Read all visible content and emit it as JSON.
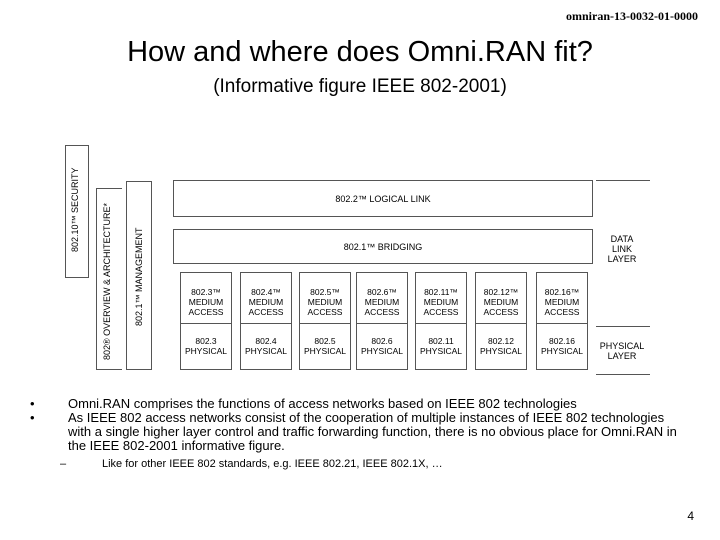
{
  "header": {
    "doc_id": "omniran-13-0032-01-0000"
  },
  "slide": {
    "title": "How and where does Omni.RAN fit?",
    "subtitle": "(Informative figure IEEE 802-2001)",
    "page_number": "4"
  },
  "figure": {
    "security_label": "802.10™ SECURITY",
    "overview_label": "802® OVERVIEW & ARCHITECTURE*",
    "management_label": "802.1™ MANAGEMENT",
    "logical_link_label": "802.2™ LOGICAL LINK",
    "bridging_label": "802.1™ BRIDGING",
    "data_link_layer": "DATA LINK LAYER",
    "physical_layer": "PHYSICAL LAYER",
    "columns": [
      {
        "mac": "802.3™ MEDIUM ACCESS",
        "phy": "802.3 PHYSICAL"
      },
      {
        "mac": "802.4™ MEDIUM ACCESS",
        "phy": "802.4 PHYSICAL"
      },
      {
        "mac": "802.5™ MEDIUM ACCESS",
        "phy": "802.5 PHYSICAL"
      },
      {
        "mac": "802.6™ MEDIUM ACCESS",
        "phy": "802.6 PHYSICAL"
      },
      {
        "mac": "802.11™ MEDIUM ACCESS",
        "phy": "802.11 PHYSICAL"
      },
      {
        "mac": "802.12™ MEDIUM ACCESS",
        "phy": "802.12 PHYSICAL"
      },
      {
        "mac": "802.16™ MEDIUM ACCESS",
        "phy": "802.16 PHYSICAL"
      }
    ]
  },
  "bullets": [
    "Omni.RAN comprises the functions of access networks based on IEEE 802 technologies",
    "As IEEE 802 access networks consist of the cooperation of multiple instances of IEEE 802 technologies with a single higher layer control and traffic forwarding function, there is no obvious place for Omni.RAN in the IEEE 802-2001 informative figure."
  ],
  "sub_bullet": "Like for other IEEE 802 standards, e.g. IEEE 802.21, IEEE 802.1X, …"
}
